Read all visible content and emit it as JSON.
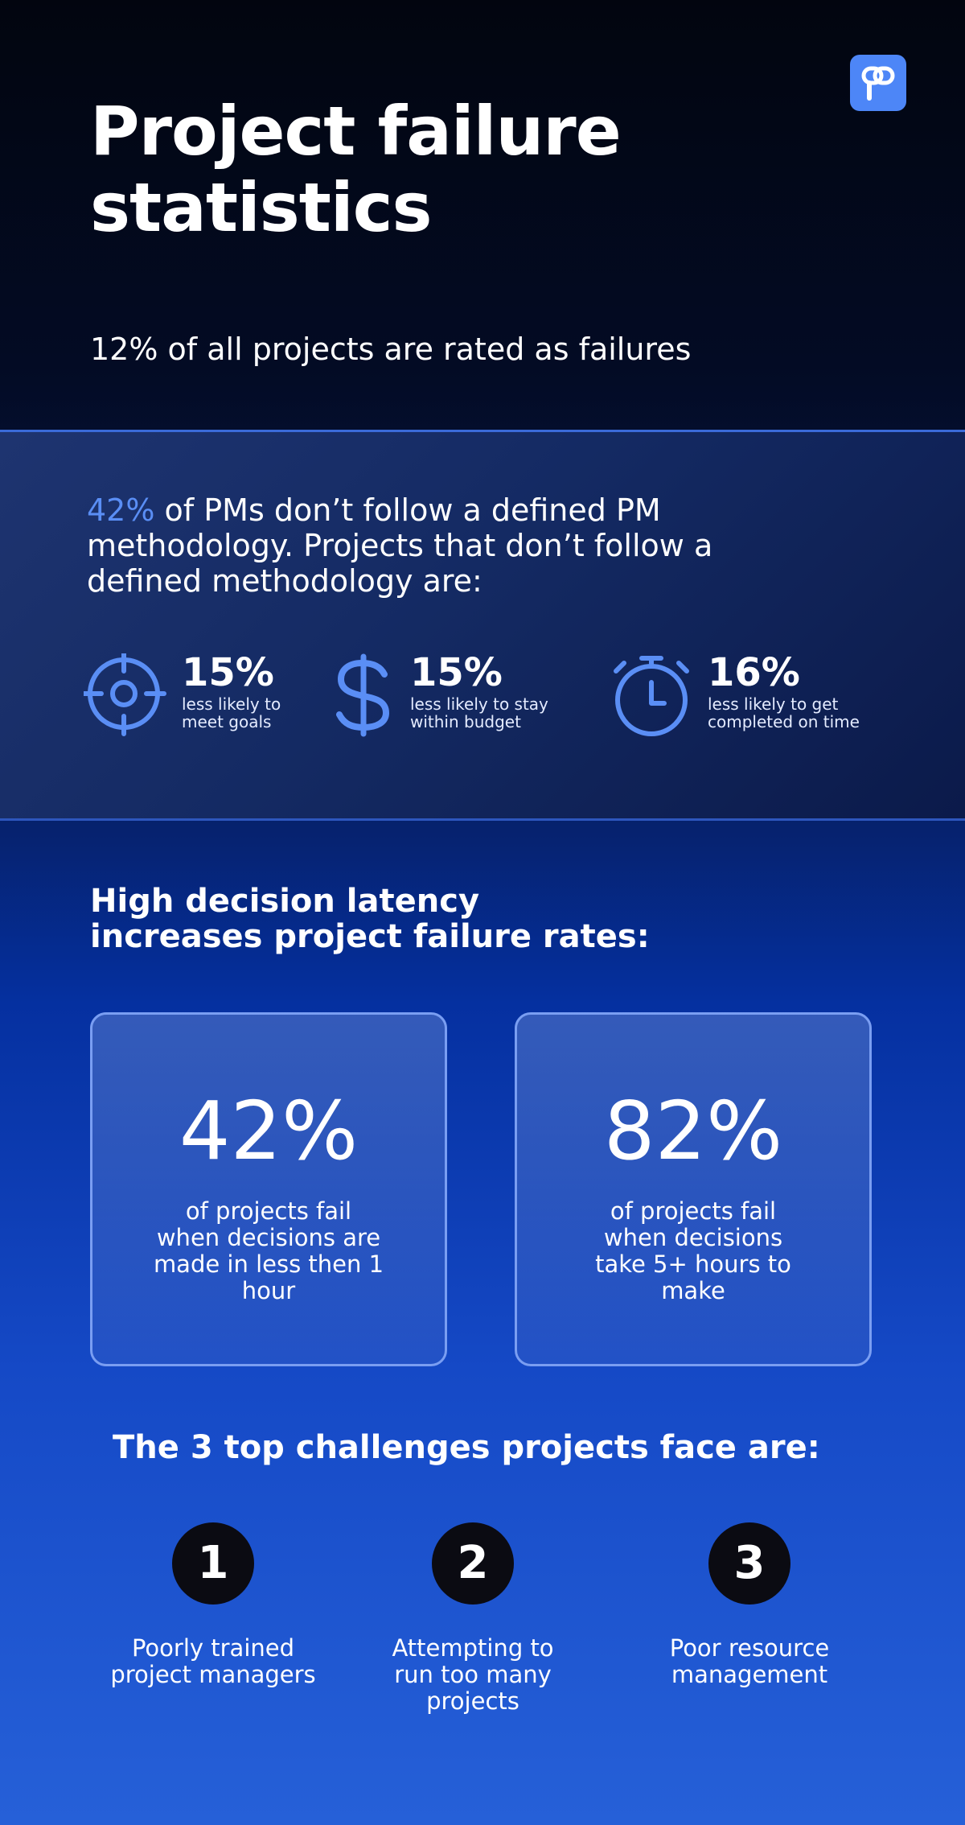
{
  "header": {
    "title": "Project failure statistics",
    "subtitle": "12% of all projects are rated as failures",
    "logo_icon": "brand-logo-icon"
  },
  "methodology": {
    "highlight": "42%",
    "text": " of PMs don’t follow a defined PM methodology. Projects that don’t follow a defined methodology are:",
    "accent_color": "#5a8ef5",
    "stats": [
      {
        "icon": "target-icon",
        "value": "15%",
        "label_line1": "less likely to",
        "label_line2": "meet goals"
      },
      {
        "icon": "dollar-icon",
        "value": "15%",
        "label_line1": "less likely to stay",
        "label_line2": "within budget"
      },
      {
        "icon": "stopwatch-icon",
        "value": "16%",
        "label_line1": "less likely to get",
        "label_line2": "completed on time"
      }
    ]
  },
  "latency": {
    "title": "High decision latency increases project failure rates:",
    "cards": [
      {
        "value": "42%",
        "text": "of projects fail when decisions are made in less then 1 hour"
      },
      {
        "value": "82%",
        "text": "of projects fail when decisions take 5+ hours to make"
      }
    ]
  },
  "challenges": {
    "title": "The 3 top challenges projects face are:",
    "items": [
      {
        "number": "1",
        "text": "Poorly trained project managers"
      },
      {
        "number": "2",
        "text": "Attempting to run too many projects"
      },
      {
        "number": "3",
        "text": "Poor resource management"
      }
    ]
  }
}
